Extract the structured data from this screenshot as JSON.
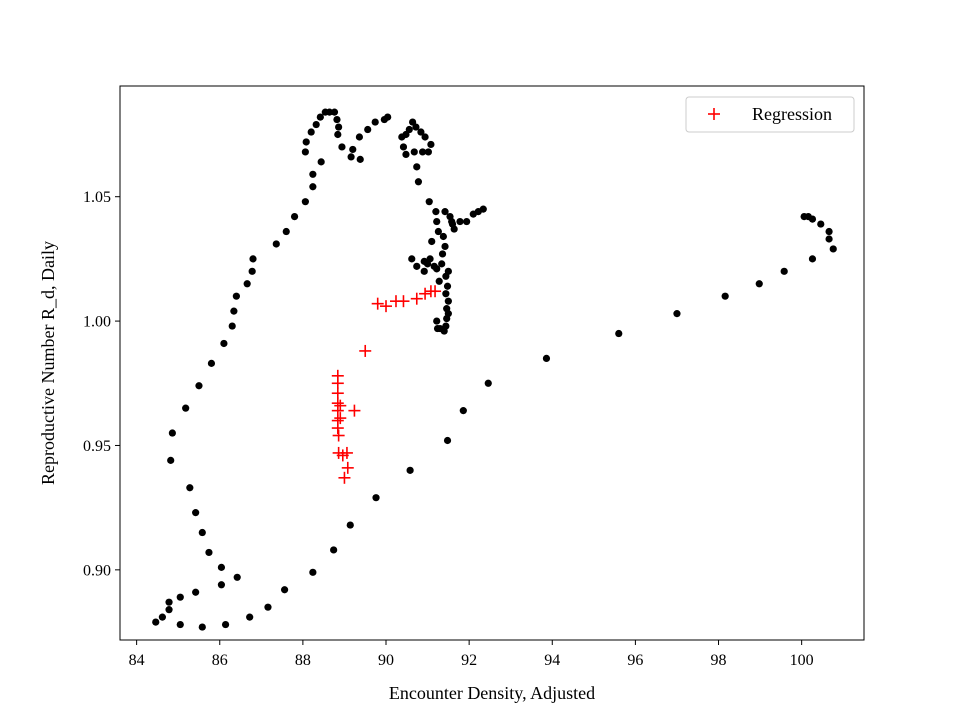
{
  "chart_data": {
    "type": "scatter",
    "xlabel": "Encounter Density, Adjusted",
    "ylabel": "Reproductive Number R_d, Daily",
    "xlim": [
      83.6,
      101.5
    ],
    "ylim": [
      0.8718,
      1.0945
    ],
    "xticks": [
      84,
      86,
      88,
      90,
      92,
      94,
      96,
      98,
      100
    ],
    "yticks": [
      0.9,
      0.95,
      1.0,
      1.05
    ],
    "xtick_labels": [
      "84",
      "86",
      "88",
      "90",
      "92",
      "94",
      "96",
      "98",
      "100"
    ],
    "ytick_labels": [
      "0.90",
      "0.95",
      "1.00",
      "1.05"
    ],
    "grid": false,
    "legend_position": "top-right",
    "series": [
      {
        "role": "observations",
        "marker": "dot",
        "color": "#000000",
        "points": [
          [
            84.46,
            0.879
          ],
          [
            84.62,
            0.881
          ],
          [
            84.78,
            0.884
          ],
          [
            84.78,
            0.887
          ],
          [
            85.05,
            0.878
          ],
          [
            85.05,
            0.889
          ],
          [
            85.42,
            0.891
          ],
          [
            85.58,
            0.877
          ],
          [
            86.14,
            0.878
          ],
          [
            86.72,
            0.881
          ],
          [
            87.16,
            0.885
          ],
          [
            87.56,
            0.892
          ],
          [
            88.24,
            0.899
          ],
          [
            88.74,
            0.908
          ],
          [
            89.14,
            0.918
          ],
          [
            89.76,
            0.929
          ],
          [
            90.58,
            0.94
          ],
          [
            91.48,
            0.952
          ],
          [
            91.86,
            0.964
          ],
          [
            92.46,
            0.975
          ],
          [
            93.86,
            0.985
          ],
          [
            95.6,
            0.995
          ],
          [
            97.0,
            1.003
          ],
          [
            98.16,
            1.01
          ],
          [
            98.98,
            1.015
          ],
          [
            99.58,
            1.02
          ],
          [
            100.26,
            1.025
          ],
          [
            100.76,
            1.029
          ],
          [
            100.66,
            1.033
          ],
          [
            100.66,
            1.036
          ],
          [
            100.46,
            1.039
          ],
          [
            100.26,
            1.041
          ],
          [
            100.16,
            1.042
          ],
          [
            100.06,
            1.042
          ],
          [
            86.42,
            0.897
          ],
          [
            86.04,
            0.894
          ],
          [
            86.04,
            0.901
          ],
          [
            85.74,
            0.907
          ],
          [
            85.58,
            0.915
          ],
          [
            85.42,
            0.923
          ],
          [
            85.28,
            0.933
          ],
          [
            84.82,
            0.944
          ],
          [
            84.86,
            0.955
          ],
          [
            85.18,
            0.965
          ],
          [
            85.5,
            0.974
          ],
          [
            85.8,
            0.983
          ],
          [
            86.1,
            0.991
          ],
          [
            86.3,
            0.998
          ],
          [
            86.34,
            1.004
          ],
          [
            86.4,
            1.01
          ],
          [
            86.66,
            1.015
          ],
          [
            86.78,
            1.02
          ],
          [
            86.8,
            1.025
          ],
          [
            87.36,
            1.031
          ],
          [
            87.6,
            1.036
          ],
          [
            87.8,
            1.042
          ],
          [
            88.06,
            1.048
          ],
          [
            88.24,
            1.054
          ],
          [
            88.24,
            1.059
          ],
          [
            88.44,
            1.064
          ],
          [
            88.06,
            1.068
          ],
          [
            88.08,
            1.072
          ],
          [
            88.2,
            1.076
          ],
          [
            88.32,
            1.079
          ],
          [
            88.42,
            1.082
          ],
          [
            88.54,
            1.084
          ],
          [
            88.64,
            1.084
          ],
          [
            88.76,
            1.084
          ],
          [
            88.82,
            1.081
          ],
          [
            88.86,
            1.078
          ],
          [
            88.84,
            1.075
          ],
          [
            88.94,
            1.07
          ],
          [
            89.16,
            1.066
          ],
          [
            89.2,
            1.069
          ],
          [
            89.36,
            1.074
          ],
          [
            89.38,
            1.065
          ],
          [
            89.56,
            1.077
          ],
          [
            89.74,
            1.08
          ],
          [
            89.96,
            1.081
          ],
          [
            90.04,
            1.082
          ],
          [
            90.38,
            1.074
          ],
          [
            90.42,
            1.07
          ],
          [
            90.48,
            1.075
          ],
          [
            90.56,
            1.077
          ],
          [
            90.64,
            1.08
          ],
          [
            90.72,
            1.078
          ],
          [
            90.84,
            1.076
          ],
          [
            90.94,
            1.074
          ],
          [
            91.08,
            1.071
          ],
          [
            91.02,
            1.068
          ],
          [
            90.88,
            1.068
          ],
          [
            90.68,
            1.068
          ],
          [
            90.48,
            1.067
          ],
          [
            90.74,
            1.062
          ],
          [
            90.78,
            1.056
          ],
          [
            91.04,
            1.048
          ],
          [
            91.2,
            1.044
          ],
          [
            91.42,
            1.044
          ],
          [
            91.54,
            1.042
          ],
          [
            91.58,
            1.04
          ],
          [
            91.64,
            1.037
          ],
          [
            91.78,
            1.04
          ],
          [
            91.94,
            1.04
          ],
          [
            92.1,
            1.043
          ],
          [
            92.22,
            1.044
          ],
          [
            92.34,
            1.045
          ],
          [
            91.22,
            1.04
          ],
          [
            91.26,
            1.036
          ],
          [
            91.38,
            1.034
          ],
          [
            91.42,
            1.03
          ],
          [
            91.36,
            1.027
          ],
          [
            91.1,
            1.032
          ],
          [
            91.06,
            1.025
          ],
          [
            91.0,
            1.023
          ],
          [
            90.92,
            1.02
          ],
          [
            90.74,
            1.022
          ],
          [
            90.62,
            1.025
          ],
          [
            90.92,
            1.024
          ],
          [
            91.22,
            1.021
          ],
          [
            91.44,
            1.018
          ],
          [
            91.28,
            1.016
          ],
          [
            91.48,
            1.014
          ],
          [
            91.44,
            1.011
          ],
          [
            91.5,
            1.008
          ],
          [
            91.46,
            1.005
          ],
          [
            91.5,
            1.003
          ],
          [
            91.46,
            1.001
          ],
          [
            91.44,
            0.998
          ],
          [
            91.22,
            1.0
          ],
          [
            91.24,
            0.997
          ],
          [
            91.4,
            0.996
          ],
          [
            91.3,
            0.997
          ],
          [
            91.6,
            1.039
          ],
          [
            91.5,
            1.02
          ],
          [
            91.34,
            1.023
          ],
          [
            91.16,
            1.022
          ]
        ]
      },
      {
        "name": "Regression",
        "marker": "plus",
        "color": "#ff0000",
        "points": [
          [
            88.84,
            0.978
          ],
          [
            88.84,
            0.975
          ],
          [
            88.84,
            0.971
          ],
          [
            88.84,
            0.967
          ],
          [
            88.84,
            0.964
          ],
          [
            88.84,
            0.96
          ],
          [
            88.84,
            0.957
          ],
          [
            88.86,
            0.954
          ],
          [
            88.9,
            0.966
          ],
          [
            88.9,
            0.961
          ],
          [
            88.86,
            0.947
          ],
          [
            88.96,
            0.946
          ],
          [
            89.06,
            0.947
          ],
          [
            89.08,
            0.941
          ],
          [
            89.0,
            0.937
          ],
          [
            89.24,
            0.964
          ],
          [
            89.5,
            0.988
          ],
          [
            89.8,
            1.007
          ],
          [
            90.0,
            1.006
          ],
          [
            90.24,
            1.008
          ],
          [
            90.42,
            1.008
          ],
          [
            90.74,
            1.009
          ],
          [
            90.94,
            1.011
          ],
          [
            91.08,
            1.012
          ],
          [
            91.18,
            1.012
          ]
        ]
      }
    ]
  }
}
